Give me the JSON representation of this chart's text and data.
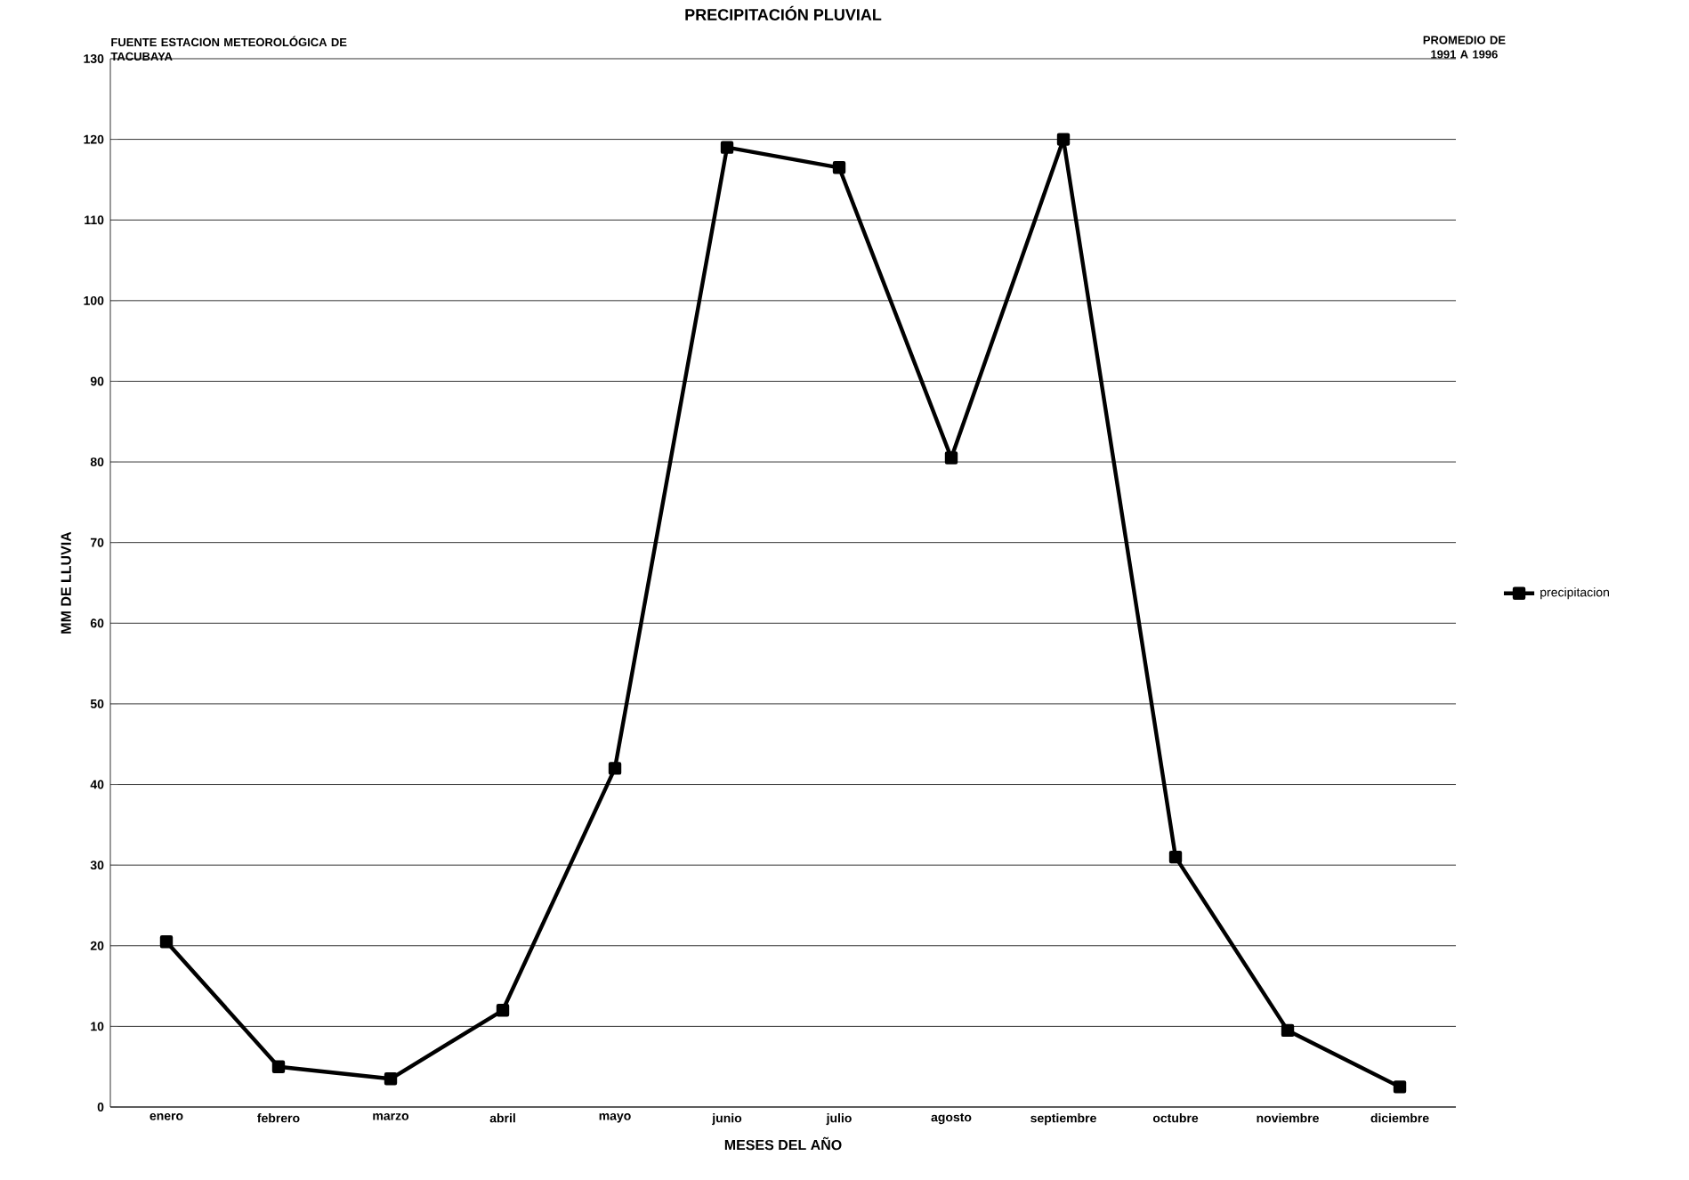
{
  "chart_data": {
    "type": "line",
    "title": "PRECIPITACIÓN PLUVIAL",
    "xlabel": "MESES DEL AÑO",
    "ylabel": "MM DE LLUVIA",
    "annotations": [
      "FUENTE ESTACION METEOROLÓGICA DE TACUBAYA",
      "PROMEDIO DE 1991 A 1996"
    ],
    "categories": [
      "enero",
      "febrero",
      "marzo",
      "abril",
      "mayo",
      "junio",
      "julio",
      "agosto",
      "septiembre",
      "octubre",
      "noviembre",
      "diciembre"
    ],
    "series": [
      {
        "name": "precipitacion",
        "color": "#000000",
        "values": [
          20.5,
          5,
          3.5,
          12,
          42,
          119,
          116.5,
          80.5,
          120,
          31,
          9.5,
          2.5
        ]
      }
    ],
    "ylim": [
      0,
      130
    ],
    "yticks": [
      0,
      10,
      20,
      30,
      40,
      50,
      60,
      70,
      80,
      90,
      100,
      110,
      120,
      130
    ],
    "grid": "y",
    "legend": "right",
    "marker": "square",
    "line_style": "solid"
  }
}
